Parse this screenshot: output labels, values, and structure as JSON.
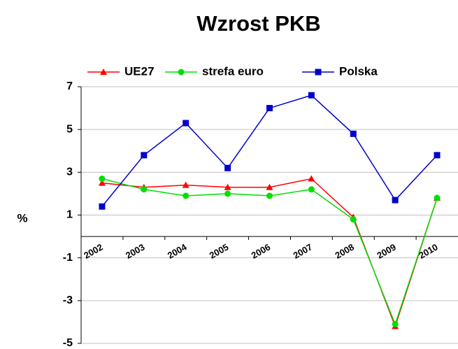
{
  "chart_data": {
    "type": "line",
    "title": "Wzrost PKB",
    "y_label": "%",
    "categories": [
      "2002",
      "2003",
      "2004",
      "2005",
      "2006",
      "2007",
      "2008",
      "2009",
      "2010"
    ],
    "series": [
      {
        "name": "UE27",
        "color": "#ff0000",
        "marker": "triangle",
        "values": [
          2.5,
          2.3,
          2.4,
          2.3,
          2.3,
          2.7,
          0.9,
          -4.2,
          1.8
        ]
      },
      {
        "name": "strefa euro",
        "color": "#00e000",
        "marker": "circle",
        "values": [
          2.7,
          2.2,
          1.9,
          2.0,
          1.9,
          2.2,
          0.8,
          -4.1,
          1.8
        ]
      },
      {
        "name": "Polska",
        "color": "#0000cc",
        "marker": "square",
        "values": [
          1.4,
          3.8,
          5.3,
          3.2,
          6.0,
          6.6,
          4.8,
          1.7,
          3.8
        ]
      }
    ],
    "ylim": [
      -5,
      7
    ],
    "yticks": [
      -5,
      -3,
      -1,
      1,
      3,
      5,
      7
    ],
    "grid": true,
    "legend": "top"
  }
}
